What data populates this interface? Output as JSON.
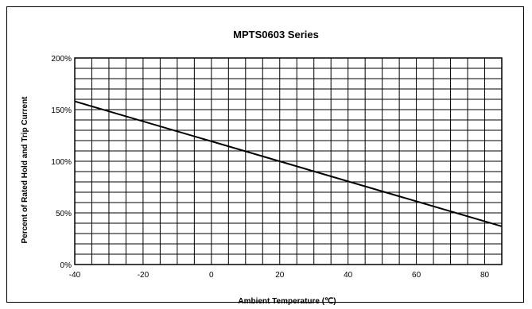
{
  "chart_data": {
    "type": "line",
    "title": "MPTS0603 Series",
    "xlabel": "Ambient Temperature (℃)",
    "ylabel": "Percent of Rated Hold  and Trip Current",
    "xlim": [
      -40,
      85
    ],
    "ylim": [
      0,
      200
    ],
    "x_ticks": [
      -40,
      -20,
      0,
      20,
      40,
      60,
      80
    ],
    "x_tick_labels": [
      "-40",
      "-20",
      "0",
      "20",
      "40",
      "60",
      "80"
    ],
    "y_ticks": [
      0,
      50,
      100,
      150,
      200
    ],
    "y_tick_labels": [
      "0%",
      "50%",
      "100%",
      "150%",
      "200%"
    ],
    "grid": true,
    "series": [
      {
        "x": [
          -40,
          85
        ],
        "values": [
          158,
          37
        ]
      }
    ],
    "colors": {
      "line": "#000000",
      "grid": "#000000",
      "background": "#ffffff"
    }
  }
}
